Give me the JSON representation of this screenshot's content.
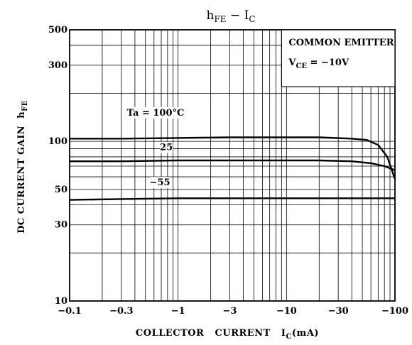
{
  "chart_data": {
    "type": "line",
    "title": "hFE − IC",
    "title_parts": {
      "main_a": "h",
      "sub_a": "FE",
      "dash": " − ",
      "main_b": "I",
      "sub_b": "C"
    },
    "xlabel": "COLLECTOR CURRENT IC(mA)",
    "xlabel_parts": {
      "text": "COLLECTOR   CURRENT   I",
      "sub": "C",
      "unit": "(mA)"
    },
    "ylabel": "DC CURRENT GAIN hFE",
    "ylabel_parts": {
      "text": "DC CURRENT GAIN  h",
      "sub": "FE"
    },
    "x_scale": "log",
    "y_scale": "log",
    "xlim": [
      0.1,
      100
    ],
    "ylim": [
      10,
      500
    ],
    "x_direction": "negative current, magnitude increases to the right",
    "xticks": [
      {
        "value": 0.1,
        "label": "−0.1"
      },
      {
        "value": 0.3,
        "label": "−0.3"
      },
      {
        "value": 1,
        "label": "−1"
      },
      {
        "value": 3,
        "label": "−3"
      },
      {
        "value": 10,
        "label": "−10"
      },
      {
        "value": 30,
        "label": "−30"
      },
      {
        "value": 100,
        "label": "−100"
      }
    ],
    "yticks": [
      {
        "value": 10,
        "label": "10"
      },
      {
        "value": 30,
        "label": "30"
      },
      {
        "value": 50,
        "label": "50"
      },
      {
        "value": 100,
        "label": "100"
      },
      {
        "value": 300,
        "label": "300"
      },
      {
        "value": 500,
        "label": "500"
      }
    ],
    "grid": true,
    "legend_box": {
      "line1": "COMMON EMITTER",
      "line2_main": "V",
      "line2_sub": "CE",
      "line2_rest": " = −10V",
      "placement": "top-right"
    },
    "series": [
      {
        "name": "Ta = 100°C",
        "x": [
          0.1,
          0.3,
          1,
          3,
          10,
          20,
          40,
          55,
          70,
          85,
          100
        ],
        "y": [
          104,
          104,
          105,
          106,
          106,
          106,
          104,
          102,
          95,
          80,
          58
        ]
      },
      {
        "name": "25",
        "x": [
          0.1,
          0.3,
          1,
          3,
          10,
          20,
          40,
          60,
          80,
          100
        ],
        "y": [
          75,
          75,
          76,
          76,
          76,
          76,
          75,
          73,
          70,
          66
        ]
      },
      {
        "name": "−55",
        "x": [
          0.1,
          0.3,
          1,
          3,
          10,
          30,
          100
        ],
        "y": [
          43,
          43.5,
          44,
          44,
          44,
          44,
          44
        ]
      }
    ],
    "annotations": [
      {
        "text": "Ta = 100°C",
        "series": 0
      },
      {
        "text": "25",
        "series": 1
      },
      {
        "text": "−55",
        "series": 2
      }
    ]
  }
}
